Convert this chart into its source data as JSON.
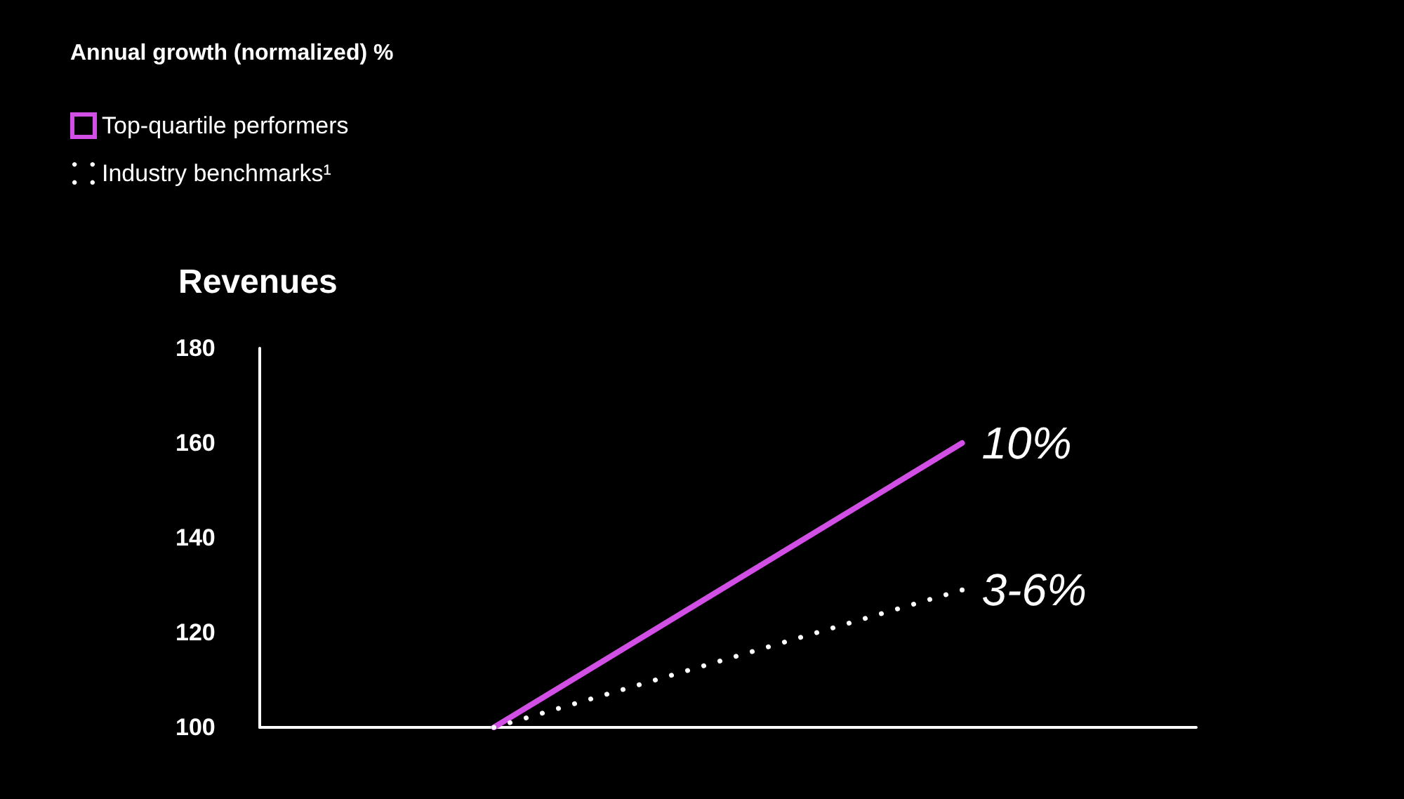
{
  "chart_data": {
    "type": "line",
    "title": "Annual growth (normalized) %",
    "subtitle": "Revenues",
    "categories": [
      null,
      null
    ],
    "series": [
      {
        "name": "Top-quartile performers",
        "color": "#d24fe6",
        "values": [
          100,
          160
        ],
        "line_style": "solid"
      },
      {
        "name": "Industry benchmarks¹",
        "color": "#ffffff",
        "values": [
          100,
          129
        ],
        "line_style": "dotted"
      }
    ],
    "annotations": [
      "10%",
      "3-6%"
    ],
    "ylim": [
      100,
      180
    ],
    "yticks": [
      100,
      120,
      140,
      160,
      180
    ],
    "grid": false,
    "legend": "top left"
  }
}
